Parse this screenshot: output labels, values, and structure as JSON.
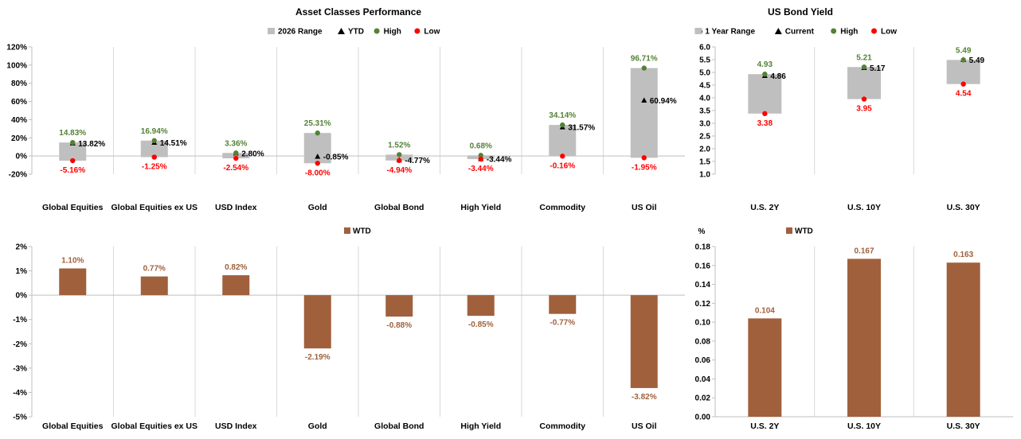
{
  "chart_data": [
    {
      "type": "range",
      "title": "Asset Classes Performance",
      "ylabel": "",
      "legend": [
        "2026 Range",
        "YTD",
        "High",
        "Low"
      ],
      "legend_placement": "top-center",
      "ylim": [
        -20,
        120
      ],
      "yticks": [
        "-20%",
        "0%",
        "20%",
        "40%",
        "60%",
        "80%",
        "100%",
        "120%"
      ],
      "categories": [
        "Global Equities",
        "Global Equities ex US",
        "USD Index",
        "Gold",
        "Global Bond",
        "High Yield",
        "Commodity",
        "US Oil"
      ],
      "high": [
        14.83,
        16.94,
        3.36,
        25.31,
        1.52,
        0.68,
        34.14,
        96.71
      ],
      "low": [
        -5.16,
        -1.25,
        -2.54,
        -8.0,
        -4.94,
        -3.44,
        -0.16,
        -1.95
      ],
      "ytd": [
        13.82,
        14.51,
        2.8,
        -0.85,
        -4.77,
        -3.44,
        31.57,
        60.94
      ],
      "high_labels": [
        "14.83%",
        "16.94%",
        "3.36%",
        "25.31%",
        "1.52%",
        "0.68%",
        "34.14%",
        "96.71%"
      ],
      "low_labels": [
        "-5.16%",
        "-1.25%",
        "-2.54%",
        "-8.00%",
        "-4.94%",
        "-3.44%",
        "-0.16%",
        "-1.95%"
      ],
      "ytd_labels": [
        "13.82%",
        "14.51%",
        "2.80%",
        "-0.85%",
        "-4.77%",
        "-3.44%",
        "31.57%",
        "60.94%"
      ],
      "colors": {
        "range": "#BFBFBF",
        "marker": "#000000",
        "high": "#548235",
        "low": "#FF0000"
      },
      "grid": "vertical"
    },
    {
      "type": "range",
      "title": "US Bond Yield",
      "ylabel": "%",
      "legend": [
        "1 Year Range",
        "Current",
        "High",
        "Low"
      ],
      "legend_placement": "top-center",
      "ylim": [
        1.0,
        6.0
      ],
      "yticks": [
        "1.0",
        "1.5",
        "2.0",
        "2.5",
        "3.0",
        "3.5",
        "4.0",
        "4.5",
        "5.0",
        "5.5",
        "6.0"
      ],
      "categories": [
        "U.S. 2Y",
        "U.S. 10Y",
        "U.S. 30Y"
      ],
      "high": [
        4.93,
        5.21,
        5.49
      ],
      "low": [
        3.38,
        3.95,
        4.54
      ],
      "current": [
        4.86,
        5.17,
        5.49
      ],
      "high_labels": [
        "4.93",
        "5.21",
        "5.49"
      ],
      "low_labels": [
        "3.38",
        "3.95",
        "4.54"
      ],
      "current_labels": [
        "4.86",
        "5.17",
        "5.49"
      ],
      "colors": {
        "range": "#BFBFBF",
        "marker": "#000000",
        "high": "#548235",
        "low": "#FF0000"
      },
      "grid": "vertical"
    },
    {
      "type": "bar",
      "title": "",
      "legend": [
        "WTD"
      ],
      "legend_placement": "top-center",
      "ylim": [
        -5,
        2
      ],
      "yticks": [
        "-5%",
        "-4%",
        "-3%",
        "-2%",
        "-1%",
        "0%",
        "1%",
        "2%"
      ],
      "categories": [
        "Global Equities",
        "Global Equities ex US",
        "USD Index",
        "Gold",
        "Global Bond",
        "High Yield",
        "Commodity",
        "US Oil"
      ],
      "values": [
        1.1,
        0.77,
        0.82,
        -2.19,
        -0.88,
        -0.85,
        -0.77,
        -3.82
      ],
      "labels": [
        "1.10%",
        "0.77%",
        "0.82%",
        "-2.19%",
        "-0.88%",
        "-0.85%",
        "-0.77%",
        "-3.82%"
      ],
      "colors": {
        "bar": "#A0603C",
        "label": "#A0603C"
      },
      "grid": "vertical"
    },
    {
      "type": "bar",
      "title": "",
      "ylabel": "%",
      "legend": [
        "WTD"
      ],
      "legend_placement": "top-center",
      "ylim": [
        0,
        0.18
      ],
      "yticks": [
        "0.00",
        "0.02",
        "0.04",
        "0.06",
        "0.08",
        "0.10",
        "0.12",
        "0.14",
        "0.16",
        "0.18"
      ],
      "categories": [
        "U.S. 2Y",
        "U.S. 10Y",
        "U.S. 30Y"
      ],
      "values": [
        0.104,
        0.167,
        0.163
      ],
      "labels": [
        "0.104",
        "0.167",
        "0.163"
      ],
      "colors": {
        "bar": "#A0603C",
        "label": "#A0603C"
      },
      "grid": "vertical"
    }
  ]
}
